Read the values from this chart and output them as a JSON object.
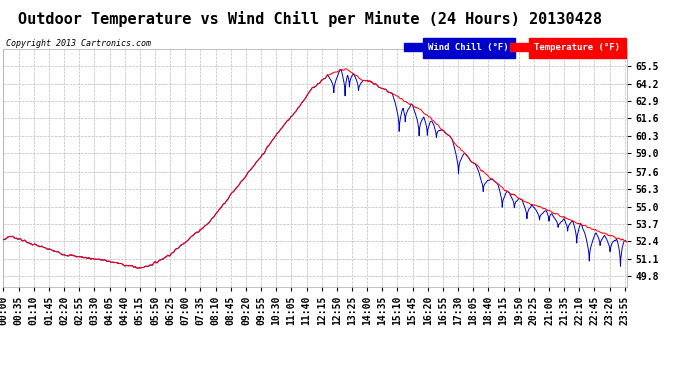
{
  "title": "Outdoor Temperature vs Wind Chill per Minute (24 Hours) 20130428",
  "copyright": "Copyright 2013 Cartronics.com",
  "legend_wind": "Wind Chill (°F)",
  "legend_temp": "Temperature (°F)",
  "yticks": [
    49.8,
    51.1,
    52.4,
    53.7,
    55.0,
    56.3,
    57.6,
    59.0,
    60.3,
    61.6,
    62.9,
    64.2,
    65.5
  ],
  "ymin": 49.0,
  "ymax": 66.8,
  "bg_color": "#ffffff",
  "plot_bg_color": "#ffffff",
  "grid_color": "#bbbbbb",
  "temp_color": "#ff0000",
  "wind_color": "#0000cc",
  "title_fontsize": 11,
  "tick_fontsize": 7,
  "xtick_interval_minutes": 35,
  "num_minutes": 1440
}
